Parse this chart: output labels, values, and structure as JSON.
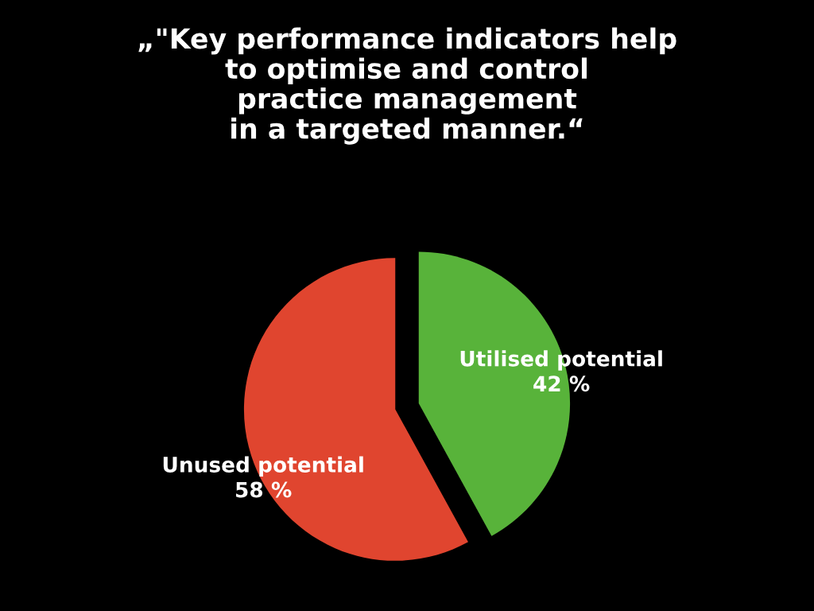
{
  "chart_data": {
    "type": "pie",
    "title": "„\"Key performance indicators help\nto optimise and control\npractice management\nin a targeted manner.“",
    "categories": [
      "Utilised potential",
      "Unused potential"
    ],
    "values": [
      42,
      58
    ],
    "value_labels": [
      "42 %",
      "58 %"
    ],
    "colors": [
      "#58b33a",
      "#e0452f"
    ]
  }
}
